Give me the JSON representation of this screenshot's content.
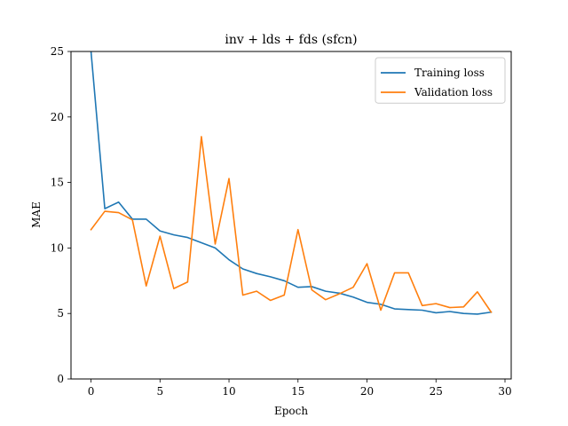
{
  "chart_data": {
    "type": "line",
    "title": "inv + lds + fds (sfcn)",
    "xlabel": "Epoch",
    "ylabel": "MAE",
    "xlim": [
      -1.45,
      30.45
    ],
    "ylim": [
      0,
      25
    ],
    "xticks": [
      0,
      5,
      10,
      15,
      20,
      25,
      30
    ],
    "yticks": [
      0,
      5,
      10,
      15,
      20,
      25
    ],
    "grid": false,
    "legend_position": "top-right",
    "x": [
      0,
      1,
      2,
      3,
      4,
      5,
      6,
      7,
      8,
      9,
      10,
      11,
      12,
      13,
      14,
      15,
      16,
      17,
      18,
      19,
      20,
      21,
      22,
      23,
      24,
      25,
      26,
      27,
      28,
      29
    ],
    "series": [
      {
        "name": "Training loss",
        "color": "#1f77b4",
        "values": [
          25.0,
          13.0,
          13.5,
          12.2,
          12.2,
          11.3,
          11.0,
          10.8,
          10.4,
          10.0,
          9.1,
          8.4,
          8.05,
          7.8,
          7.5,
          7.0,
          7.05,
          6.7,
          6.55,
          6.25,
          5.85,
          5.7,
          5.35,
          5.3,
          5.25,
          5.05,
          5.15,
          5.0,
          4.95,
          5.1
        ]
      },
      {
        "name": "Validation loss",
        "color": "#ff7f0e",
        "values": [
          11.4,
          12.8,
          12.7,
          12.15,
          7.1,
          10.9,
          6.9,
          7.4,
          18.5,
          10.3,
          15.3,
          6.4,
          6.7,
          6.0,
          6.4,
          11.4,
          6.8,
          6.05,
          6.5,
          7.0,
          8.8,
          5.25,
          8.1,
          8.1,
          5.6,
          5.75,
          5.45,
          5.5,
          6.65,
          5.1
        ]
      }
    ]
  }
}
